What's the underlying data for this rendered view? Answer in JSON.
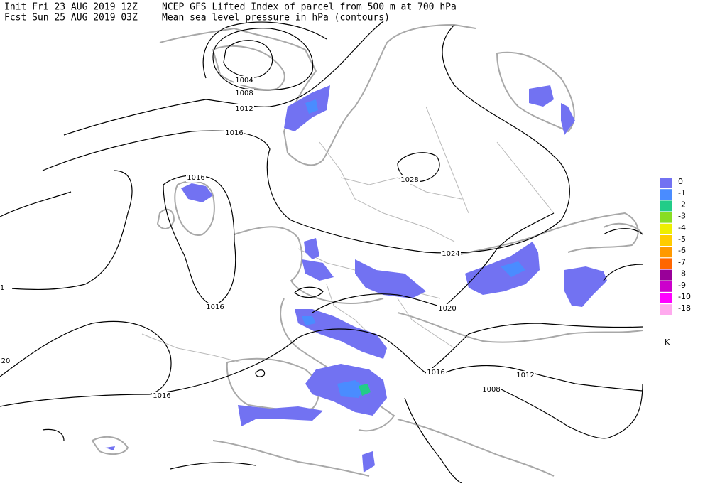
{
  "header": {
    "init": "Init  Fri 23 AUG 2019 12Z",
    "fcst": "Fcst Sun 25 AUG 2019 03Z",
    "title": "NCEP GFS Lifted Index of parcel from 500 m at 700 hPa",
    "subtitle": "Mean sea level pressure in hPa (contours)"
  },
  "contours": {
    "labels": [
      "1004",
      "1008",
      "1012",
      "1016",
      "1016",
      "1028",
      "1024",
      "1020",
      "1016",
      "1016",
      "1012",
      "1008",
      "1016",
      "20",
      "1"
    ]
  },
  "legend": {
    "items": [
      {
        "label": "0",
        "color": "#7272f2"
      },
      {
        "label": "-1",
        "color": "#4a8cff"
      },
      {
        "label": "-2",
        "color": "#22cc88"
      },
      {
        "label": "-3",
        "color": "#88dd22"
      },
      {
        "label": "-4",
        "color": "#eeee00"
      },
      {
        "label": "-5",
        "color": "#ffcc00"
      },
      {
        "label": "-6",
        "color": "#ff9900"
      },
      {
        "label": "-7",
        "color": "#ff6600"
      },
      {
        "label": "-8",
        "color": "#990099"
      },
      {
        "label": "-9",
        "color": "#cc00cc"
      },
      {
        "label": "-10",
        "color": "#ff00ff"
      },
      {
        "label": "-18",
        "color": "#ffaaee"
      }
    ],
    "unit": "K"
  }
}
